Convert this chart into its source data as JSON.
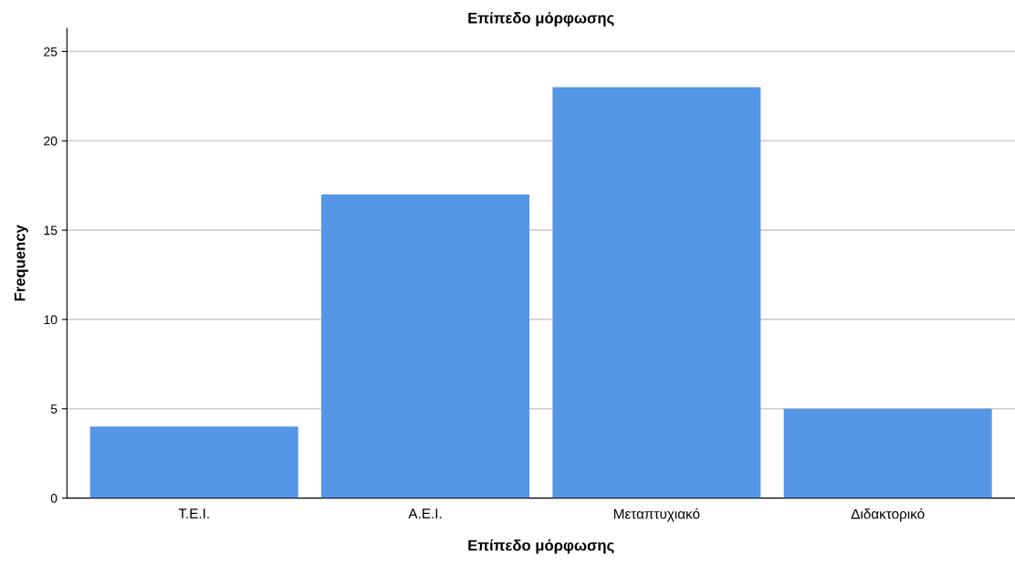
{
  "chart_data": {
    "type": "bar",
    "title": "Επίπεδο μόρφωσης",
    "xlabel": "Επίπεδο μόρφωσης",
    "ylabel": "Frequency",
    "categories": [
      "Τ.Ε.Ι.",
      "Α.Ε.Ι.",
      "Μεταπτυχιακό",
      "Διδακτορικό"
    ],
    "values": [
      4,
      17,
      23,
      5
    ],
    "color": "#5596e6",
    "ylim": [
      0,
      26.3
    ],
    "yticks": [
      0,
      5,
      10,
      15,
      20,
      25
    ],
    "grid": "y",
    "legend": false
  }
}
